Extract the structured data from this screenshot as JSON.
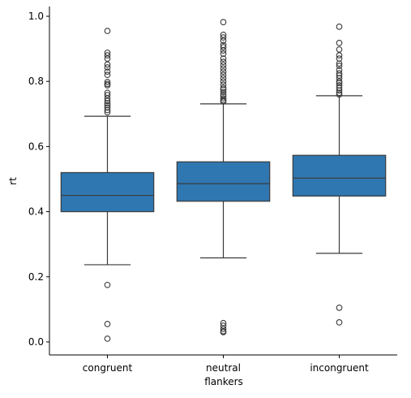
{
  "chart_data": {
    "type": "box",
    "title": "",
    "xlabel": "flankers",
    "ylabel": "rt",
    "ylim": [
      -0.04,
      1.03
    ],
    "yticks": [
      0.0,
      0.2,
      0.4,
      0.6,
      0.8,
      1.0
    ],
    "ytick_labels": [
      "0.0",
      "0.2",
      "0.4",
      "0.6",
      "0.8",
      "1.0"
    ],
    "categories": [
      "congruent",
      "neutral",
      "incongruent"
    ],
    "grid": false,
    "box_color": "#2f77b1",
    "line_color": "#3a3a3a",
    "boxes": [
      {
        "category": "congruent",
        "whisker_low": 0.237,
        "q1": 0.4,
        "median": 0.45,
        "q3": 0.52,
        "whisker_high": 0.693,
        "outliers": [
          0.175,
          0.055,
          0.01,
          0.955,
          0.888,
          0.88,
          0.87,
          0.852,
          0.843,
          0.83,
          0.82,
          0.798,
          0.792,
          0.788,
          0.765,
          0.758,
          0.748,
          0.74,
          0.733,
          0.727,
          0.72,
          0.712,
          0.705
        ]
      },
      {
        "category": "neutral",
        "whisker_low": 0.258,
        "q1": 0.432,
        "median": 0.486,
        "q3": 0.553,
        "whisker_high": 0.731,
        "outliers": [
          0.058,
          0.05,
          0.04,
          0.033,
          0.03,
          0.982,
          0.943,
          0.935,
          0.925,
          0.912,
          0.905,
          0.895,
          0.885,
          0.87,
          0.86,
          0.85,
          0.84,
          0.83,
          0.82,
          0.81,
          0.8,
          0.79,
          0.78,
          0.775,
          0.768,
          0.76,
          0.755,
          0.748,
          0.742,
          0.738
        ]
      },
      {
        "category": "incongruent",
        "whisker_low": 0.272,
        "q1": 0.448,
        "median": 0.503,
        "q3": 0.573,
        "whisker_high": 0.756,
        "outliers": [
          0.105,
          0.06,
          0.968,
          0.918,
          0.898,
          0.88,
          0.87,
          0.855,
          0.848,
          0.835,
          0.825,
          0.818,
          0.81,
          0.8,
          0.795,
          0.788,
          0.78,
          0.772,
          0.765,
          0.76
        ]
      }
    ]
  }
}
